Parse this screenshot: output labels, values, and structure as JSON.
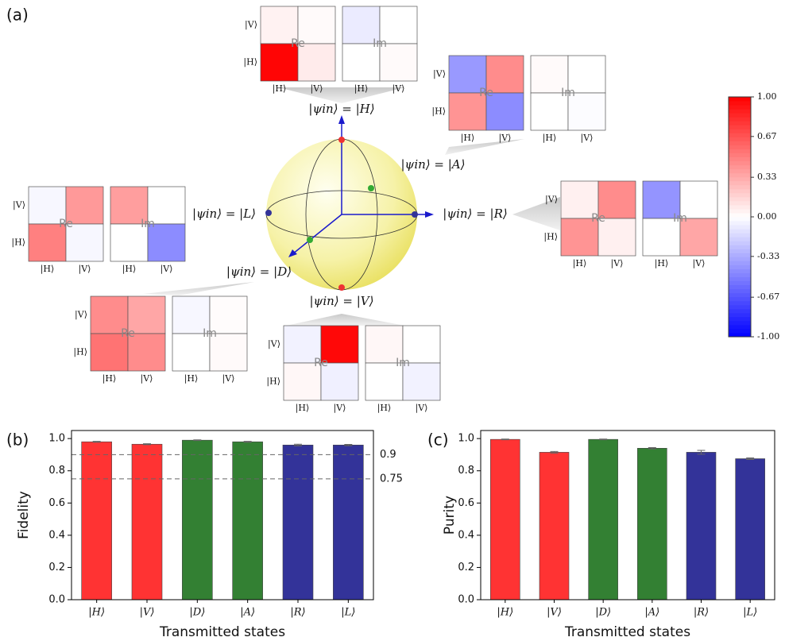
{
  "chart_data": [
    {
      "type": "density",
      "label": "(a)",
      "re_label": "Re",
      "im_label": "Im",
      "row_labels": [
        "|V⟩",
        "|H⟩"
      ],
      "col_labels": [
        "|H⟩",
        "|V⟩"
      ],
      "states": [
        {
          "label": "|ψin⟩ = |H⟩",
          "re": [
            [
              0.05,
              0.02
            ],
            [
              0.98,
              0.08
            ]
          ],
          "im": [
            [
              -0.08,
              0.0
            ],
            [
              0.0,
              0.02
            ]
          ]
        },
        {
          "label": "|ψin⟩ = |A⟩",
          "re": [
            [
              -0.4,
              0.45
            ],
            [
              0.42,
              -0.45
            ]
          ],
          "im": [
            [
              0.02,
              0.0
            ],
            [
              0.0,
              -0.01
            ]
          ]
        },
        {
          "label": "|ψin⟩ = |R⟩",
          "re": [
            [
              0.06,
              0.45
            ],
            [
              0.42,
              0.06
            ]
          ],
          "im": [
            [
              -0.42,
              0.0
            ],
            [
              0.0,
              0.35
            ]
          ]
        },
        {
          "label": "|ψin⟩ = |L⟩",
          "re": [
            [
              -0.03,
              0.4
            ],
            [
              0.5,
              -0.03
            ]
          ],
          "im": [
            [
              0.38,
              0.0
            ],
            [
              0.0,
              -0.45
            ]
          ]
        },
        {
          "label": "|ψin⟩ = |D⟩",
          "re": [
            [
              0.45,
              0.35
            ],
            [
              0.55,
              0.45
            ]
          ],
          "im": [
            [
              -0.03,
              0.01
            ],
            [
              0.0,
              0.02
            ]
          ]
        },
        {
          "label": "|ψin⟩ = |V⟩",
          "re": [
            [
              -0.05,
              0.97
            ],
            [
              0.03,
              -0.06
            ]
          ],
          "im": [
            [
              0.03,
              0.0
            ],
            [
              0.0,
              -0.05
            ]
          ]
        }
      ],
      "colorbar": {
        "lim": [
          -1,
          1
        ],
        "ticks": [
          {
            "value": 1,
            "label": "1.00"
          },
          {
            "value": 0.67,
            "label": "0.67"
          },
          {
            "value": 0.33,
            "label": "0.33"
          },
          {
            "value": 0,
            "label": "0.00"
          },
          {
            "value": -0.33,
            "label": "-0.33"
          },
          {
            "value": -0.67,
            "label": "-0.67"
          },
          {
            "value": -1,
            "label": "-1.00"
          }
        ]
      }
    },
    {
      "type": "bar",
      "label": "(b)",
      "xlabel": "Transmitted states",
      "ylabel": "Fidelity",
      "categories": [
        "|H⟩",
        "|V⟩",
        "|D⟩",
        "|A⟩",
        "|R⟩",
        "|L⟩"
      ],
      "values": [
        0.98,
        0.965,
        0.99,
        0.98,
        0.96,
        0.96
      ],
      "errors": [
        0.003,
        0.003,
        0.002,
        0.003,
        0.005,
        0.004
      ],
      "colors": [
        "#ff3333",
        "#ff3333",
        "#338033",
        "#338033",
        "#333399",
        "#333399"
      ],
      "hlines": [
        0.9,
        0.75
      ],
      "ylim": [
        0,
        1.05
      ],
      "yticks": [
        {
          "value": 0,
          "label": "0.0"
        },
        {
          "value": 0.2,
          "label": "0.2"
        },
        {
          "value": 0.4,
          "label": "0.4"
        },
        {
          "value": 0.6,
          "label": "0.6"
        },
        {
          "value": 0.8,
          "label": "0.8"
        },
        {
          "value": 1,
          "label": "1.0"
        }
      ]
    },
    {
      "type": "bar",
      "label": "(c)",
      "xlabel": "Transmitted states",
      "ylabel": "Purity",
      "categories": [
        "|H⟩",
        "|V⟩",
        "|D⟩",
        "|A⟩",
        "|R⟩",
        "|L⟩"
      ],
      "values": [
        0.995,
        0.915,
        0.995,
        0.94,
        0.915,
        0.875
      ],
      "errors": [
        0.002,
        0.005,
        0.002,
        0.004,
        0.012,
        0.005
      ],
      "colors": [
        "#ff3333",
        "#ff3333",
        "#338033",
        "#338033",
        "#333399",
        "#333399"
      ],
      "ylim": [
        0,
        1.05
      ],
      "yticks": [
        {
          "value": 0,
          "label": "0.0"
        },
        {
          "value": 0.2,
          "label": "0.2"
        },
        {
          "value": 0.4,
          "label": "0.4"
        },
        {
          "value": 0.6,
          "label": "0.6"
        },
        {
          "value": 0.8,
          "label": "0.8"
        },
        {
          "value": 1,
          "label": "1.0"
        }
      ]
    }
  ]
}
